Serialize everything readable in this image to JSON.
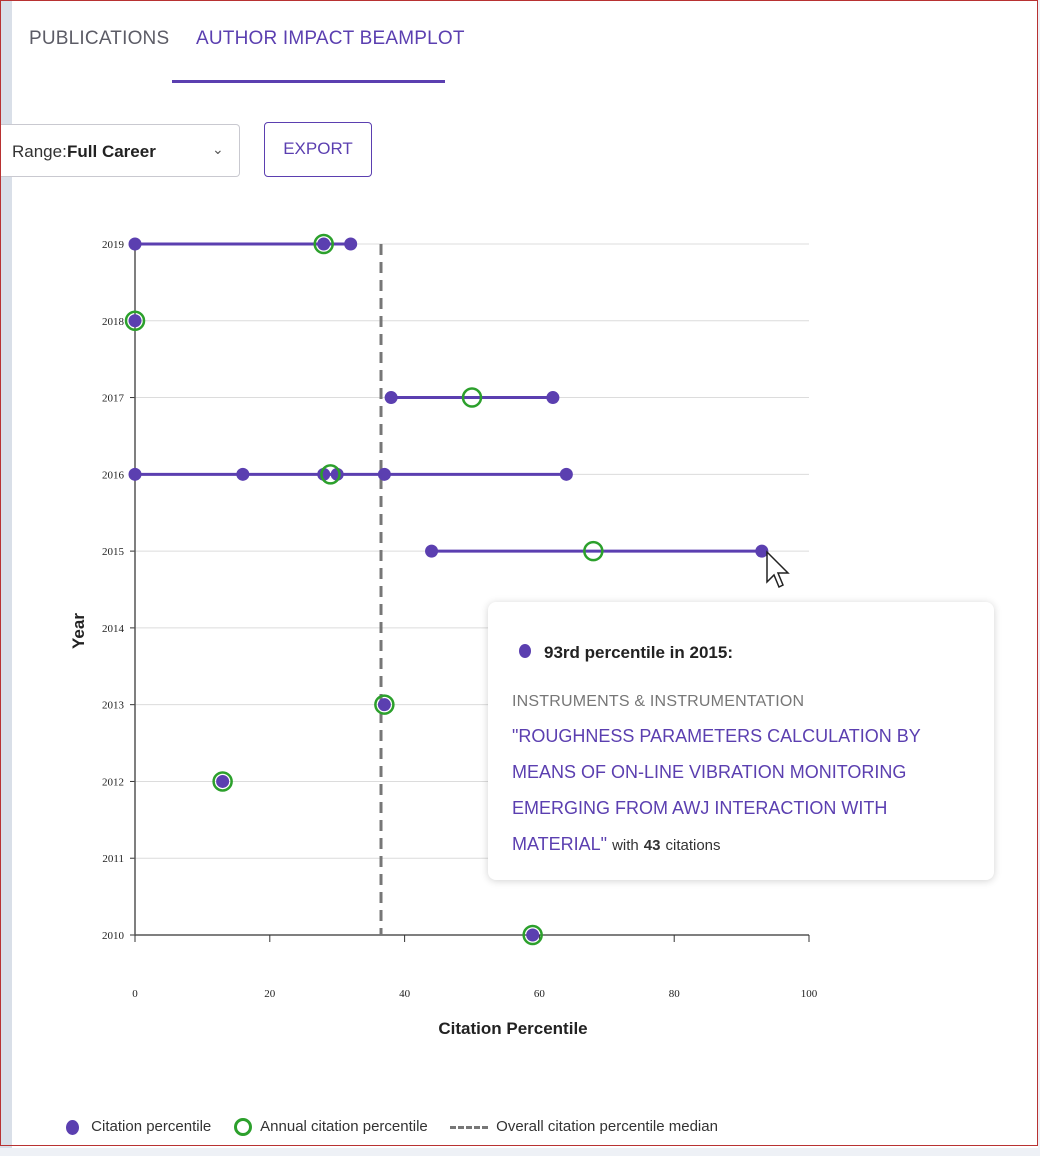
{
  "tabs": {
    "publications": "PUBLICATIONS",
    "author_impact": "AUTHOR IMPACT BEAMPLOT"
  },
  "controls": {
    "range_label": "Range:",
    "range_value": "Full Career",
    "export_label": "EXPORT"
  },
  "tooltip": {
    "heading": "93rd percentile in 2015:",
    "category": "INSTRUMENTS & INSTRUMENTATION",
    "title": "\"ROUGHNESS PARAMETERS CALCULATION BY MEANS OF ON-LINE VIBRATION MONITORING EMERGING FROM AWJ INTERACTION WITH MATERIAL\"",
    "with_text": "with",
    "citations": "43",
    "citations_text": "citations"
  },
  "legend": {
    "citation": "Citation percentile",
    "annual": "Annual citation percentile",
    "median": "Overall citation percentile median"
  },
  "colors": {
    "accent": "#5b3fb0",
    "annual_ring": "#2ca02c",
    "median_line": "#777777"
  },
  "chart_data": {
    "type": "scatter",
    "xlabel": "Citation Percentile",
    "ylabel": "Year",
    "xlim": [
      0,
      100
    ],
    "ylim": [
      2010,
      2019
    ],
    "x_ticks": [
      0,
      20,
      40,
      60,
      80,
      100
    ],
    "y_ticks": [
      2010,
      2011,
      2012,
      2013,
      2014,
      2015,
      2016,
      2017,
      2018,
      2019
    ],
    "grid": true,
    "median": 36.5,
    "legend_position": "bottom",
    "years": [
      {
        "year": 2019,
        "papers": [
          0,
          28,
          32
        ],
        "annual": 28
      },
      {
        "year": 2018,
        "papers": [
          0
        ],
        "annual": 0
      },
      {
        "year": 2017,
        "papers": [
          38,
          62
        ],
        "annual": 50
      },
      {
        "year": 2016,
        "papers": [
          0,
          16,
          28,
          30,
          37,
          64
        ],
        "annual": 29
      },
      {
        "year": 2015,
        "papers": [
          44,
          93
        ],
        "annual": 68
      },
      {
        "year": 2013,
        "papers": [
          37
        ],
        "annual": 37
      },
      {
        "year": 2012,
        "papers": [
          13
        ],
        "annual": 13
      },
      {
        "year": 2010,
        "papers": [
          59
        ],
        "annual": 59
      }
    ]
  }
}
